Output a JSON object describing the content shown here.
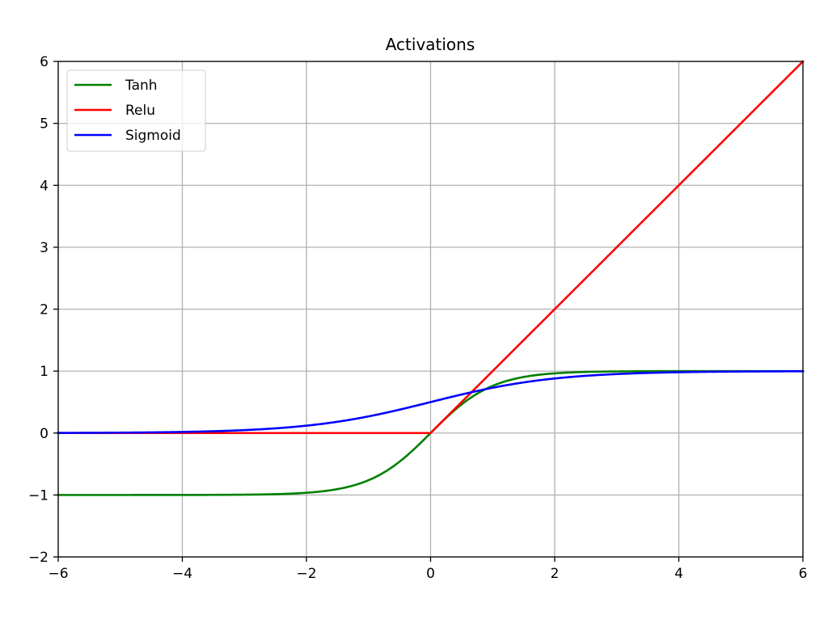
{
  "chart_data": {
    "type": "line",
    "title": "Activations",
    "xlabel": "",
    "ylabel": "",
    "xlim": [
      -6,
      6
    ],
    "ylim": [
      -2,
      6
    ],
    "xticks": [
      -6,
      -4,
      -2,
      0,
      2,
      4,
      6
    ],
    "yticks": [
      -2,
      -1,
      0,
      1,
      2,
      3,
      4,
      5,
      6
    ],
    "xtick_labels": [
      "−6",
      "−4",
      "−2",
      "0",
      "2",
      "4",
      "6"
    ],
    "ytick_labels": [
      "−2",
      "−1",
      "0",
      "1",
      "2",
      "3",
      "4",
      "5",
      "6"
    ],
    "grid": true,
    "legend_position": "top-left",
    "x": [
      -6,
      -5,
      -4,
      -3,
      -2,
      -1.5,
      -1,
      -0.5,
      0,
      0.5,
      1,
      1.5,
      2,
      3,
      4,
      5,
      6
    ],
    "series": [
      {
        "name": "Tanh",
        "color": "#008000",
        "values": [
          -1.0,
          -0.9999,
          -0.9993,
          -0.9951,
          -0.964,
          -0.9051,
          -0.7616,
          -0.4621,
          0.0,
          0.4621,
          0.7616,
          0.9051,
          0.964,
          0.9951,
          0.9993,
          0.9999,
          1.0
        ]
      },
      {
        "name": "Relu",
        "color": "#ff0000",
        "values": [
          0,
          0,
          0,
          0,
          0,
          0,
          0,
          0,
          0,
          0.5,
          1,
          1.5,
          2,
          3,
          4,
          5,
          6
        ]
      },
      {
        "name": "Sigmoid",
        "color": "#0000ff",
        "values": [
          0.0025,
          0.0067,
          0.018,
          0.0474,
          0.1192,
          0.1824,
          0.2689,
          0.3775,
          0.5,
          0.6225,
          0.7311,
          0.8176,
          0.8808,
          0.9526,
          0.982,
          0.9933,
          0.9975
        ]
      }
    ]
  }
}
